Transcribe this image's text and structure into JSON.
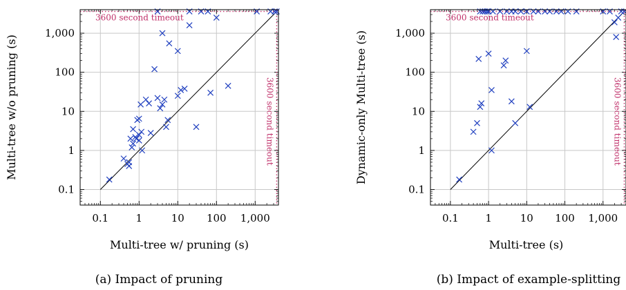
{
  "colors": {
    "marker": "#1f3fbf",
    "timeout": "#c0306a",
    "grid": "#c8c8c8",
    "diagonal": "#000000"
  },
  "chart_data": [
    {
      "type": "scatter",
      "panel": "a",
      "caption": "(a) Impact of pruning",
      "xlabel": "Multi-tree w/ pruning (s)",
      "ylabel": "Multi-tree w/o pruning (s)",
      "scale": "log",
      "xlim": [
        0.03,
        4000
      ],
      "ylim": [
        0.04,
        4000
      ],
      "ticks": [
        0.1,
        1,
        10,
        100,
        1000
      ],
      "tick_labels": [
        "0.1",
        "1",
        "10",
        "100",
        "1,000"
      ],
      "grid": true,
      "diagonal": true,
      "timeout_value": 3600,
      "timeout_label": "3600 second timeout",
      "vertical_timeout": true,
      "points": [
        [
          0.17,
          0.18
        ],
        [
          0.4,
          0.62
        ],
        [
          0.5,
          0.45
        ],
        [
          0.55,
          0.4
        ],
        [
          0.55,
          0.5
        ],
        [
          0.6,
          2
        ],
        [
          0.65,
          1.2
        ],
        [
          0.7,
          1.5
        ],
        [
          0.7,
          3.5
        ],
        [
          0.8,
          2.2
        ],
        [
          0.85,
          2
        ],
        [
          0.9,
          6
        ],
        [
          1,
          1.8
        ],
        [
          1,
          2.5
        ],
        [
          1,
          6.5
        ],
        [
          1.1,
          15
        ],
        [
          1.15,
          3
        ],
        [
          1.2,
          1
        ],
        [
          1.5,
          20
        ],
        [
          1.8,
          16
        ],
        [
          2,
          2.8
        ],
        [
          2.5,
          120
        ],
        [
          3,
          22
        ],
        [
          3.5,
          12
        ],
        [
          4,
          15
        ],
        [
          4,
          1000
        ],
        [
          4.5,
          20
        ],
        [
          5,
          4
        ],
        [
          5.5,
          6
        ],
        [
          6,
          550
        ],
        [
          10,
          25
        ],
        [
          10,
          350
        ],
        [
          12,
          35
        ],
        [
          15,
          38
        ],
        [
          20,
          1600
        ],
        [
          30,
          4
        ],
        [
          70,
          30
        ],
        [
          100,
          2500
        ],
        [
          200,
          45
        ],
        [
          3,
          3600
        ],
        [
          20,
          3600
        ],
        [
          40,
          3600
        ],
        [
          60,
          3600
        ],
        [
          1100,
          3600
        ],
        [
          2500,
          3600
        ],
        [
          3200,
          3600
        ],
        [
          3600,
          3600
        ]
      ]
    },
    {
      "type": "scatter",
      "panel": "b",
      "caption": "(b) Impact of example-splitting",
      "xlabel": "Multi-tree (s)",
      "ylabel": "Dynamic-only Multi-tree (s)",
      "scale": "log",
      "xlim": [
        0.03,
        4000
      ],
      "ylim": [
        0.04,
        4000
      ],
      "ticks": [
        0.1,
        1,
        10,
        100,
        1000
      ],
      "tick_labels": [
        "0.1",
        "1",
        "10",
        "100",
        "1,000"
      ],
      "grid": true,
      "diagonal": true,
      "timeout_value": 3600,
      "timeout_label": "3600 second timeout",
      "vertical_timeout": true,
      "points": [
        [
          0.17,
          0.18
        ],
        [
          0.4,
          3
        ],
        [
          0.5,
          5
        ],
        [
          0.55,
          220
        ],
        [
          0.6,
          13
        ],
        [
          0.65,
          16
        ],
        [
          1,
          300
        ],
        [
          1.2,
          1
        ],
        [
          1.2,
          35
        ],
        [
          2.5,
          150
        ],
        [
          2.8,
          200
        ],
        [
          4,
          18
        ],
        [
          5,
          5
        ],
        [
          10,
          350
        ],
        [
          12,
          13
        ],
        [
          2000,
          1900
        ],
        [
          2200,
          800
        ],
        [
          2500,
          2500
        ],
        [
          0.6,
          3600
        ],
        [
          0.7,
          3600
        ],
        [
          0.8,
          3600
        ],
        [
          0.9,
          3600
        ],
        [
          1,
          3600
        ],
        [
          1.3,
          3600
        ],
        [
          2,
          3600
        ],
        [
          3,
          3600
        ],
        [
          4,
          3600
        ],
        [
          5,
          3600
        ],
        [
          7,
          3600
        ],
        [
          10,
          3600
        ],
        [
          15,
          3600
        ],
        [
          20,
          3600
        ],
        [
          30,
          3600
        ],
        [
          40,
          3600
        ],
        [
          60,
          3600
        ],
        [
          80,
          3600
        ],
        [
          120,
          3600
        ],
        [
          200,
          3600
        ],
        [
          1000,
          3600
        ],
        [
          1500,
          3600
        ],
        [
          3000,
          3600
        ],
        [
          3600,
          3600
        ]
      ]
    }
  ]
}
